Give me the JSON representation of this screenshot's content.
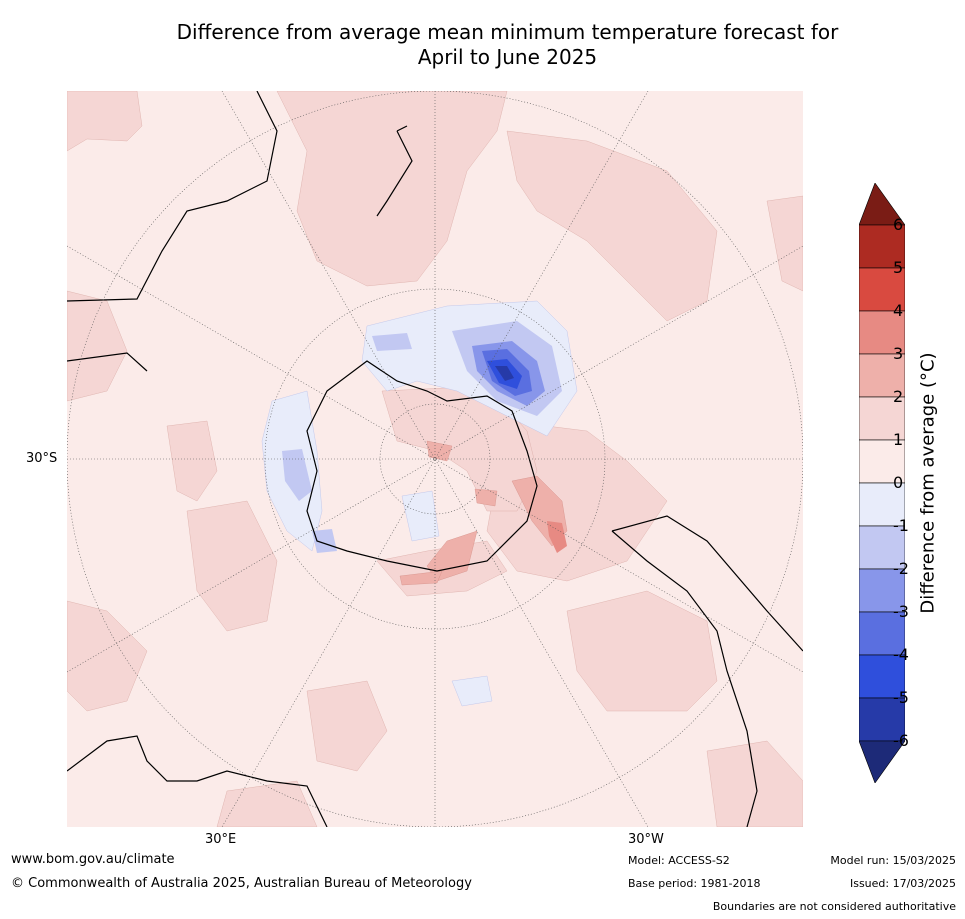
{
  "title": {
    "line1": "Difference from average mean minimum temperature forecast for",
    "line2": "April to June 2025"
  },
  "map": {
    "projection": "south polar stereographic",
    "background_color": "#fbebe9",
    "graticule_labels": {
      "lat_left": "30°S",
      "lon_bottom_left": "30°E",
      "lon_bottom_right": "30°W"
    }
  },
  "colorbar": {
    "label": "Difference from average (°C)",
    "ticks": [
      "6",
      "5",
      "4",
      "3",
      "2",
      "1",
      "0",
      "-1",
      "-2",
      "-3",
      "-4",
      "-5",
      "-6"
    ],
    "colors": {
      "above_6": "#7a1c15",
      "5_to_6": "#ad2b22",
      "4_to_5": "#d94a40",
      "3_to_4": "#e78a83",
      "2_to_3": "#eeb0aa",
      "1_to_2": "#f5d6d4",
      "0_to_1": "#fbebe9",
      "m1_to_0": "#e8ecfa",
      "m2_to_m1": "#c2c8f2",
      "m3_to_m2": "#8896ea",
      "m4_to_m3": "#5a6fe0",
      "m5_to_m4": "#2f4fdc",
      "m6_to_m5": "#263aa8",
      "below_m6": "#1d2a78"
    }
  },
  "footer": {
    "website": "www.bom.gov.au/climate",
    "copyright": "© Commonwealth of Australia 2025, Australian Bureau of Meteorology",
    "model": "Model: ACCESS-S2",
    "base_period": "Base period: 1981-2018",
    "model_run": "Model run: 15/03/2025",
    "issued": "Issued: 17/03/2025",
    "disclaimer": "Boundaries are not considered authoritative"
  }
}
